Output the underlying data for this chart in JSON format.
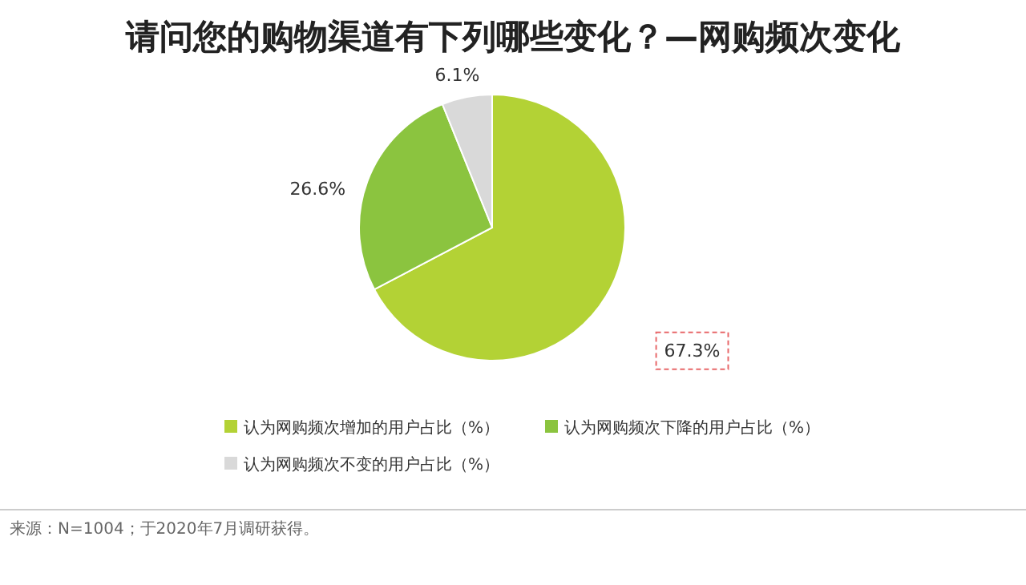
{
  "chart_data": {
    "type": "pie",
    "title": "请问您的购物渠道有下列哪些变化？—网购频次变化",
    "categories": [
      "认为网购频次增加的用户占比（%）",
      "认为网购频次下降的用户占比（%）",
      "认为网购频次不变的用户占比（%）"
    ],
    "values": [
      67.3,
      26.6,
      6.1
    ],
    "colors": [
      "#b3d235",
      "#8bc43f",
      "#d9d9d9"
    ],
    "value_labels": [
      "67.3%",
      "26.6%",
      "6.1%"
    ],
    "legend": "bottom",
    "annotations": [
      "来源：N=1004；于2020年7月调研获得。"
    ]
  }
}
